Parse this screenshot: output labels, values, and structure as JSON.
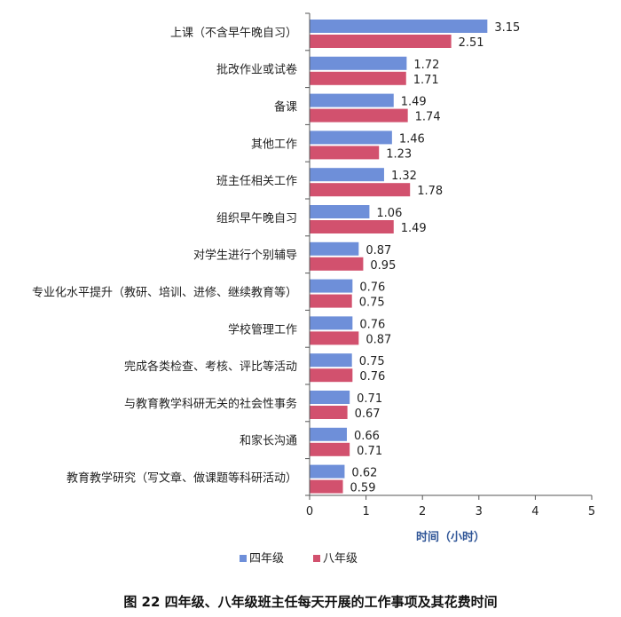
{
  "chart_data": {
    "type": "bar",
    "orientation": "horizontal",
    "categories": [
      "上课（不含早午晚自习）",
      "批改作业或试卷",
      "备课",
      "其他工作",
      "班主任相关工作",
      "组织早午晚自习",
      "对学生进行个别辅导",
      "专业化水平提升（教研、培训、进修、继续教育等）",
      "学校管理工作",
      "完成各类检查、考核、评比等活动",
      "与教育教学科研无关的社会性事务",
      "和家长沟通",
      "教育教学研究（写文章、做课题等科研活动）"
    ],
    "series": [
      {
        "name": "四年级",
        "color": "#6E8FD9",
        "values": [
          3.15,
          1.72,
          1.49,
          1.46,
          1.32,
          1.06,
          0.87,
          0.76,
          0.76,
          0.75,
          0.71,
          0.66,
          0.62
        ],
        "labels": [
          "3.15",
          "1.72",
          "1.49",
          "1.46",
          "1.32",
          "1.06",
          "0.87",
          "0.76",
          "0.76",
          "0.75",
          "0.71",
          "0.66",
          "0.62"
        ]
      },
      {
        "name": "八年级",
        "color": "#D2516E",
        "values": [
          2.51,
          1.71,
          1.74,
          1.23,
          1.78,
          1.49,
          0.95,
          0.75,
          0.87,
          0.76,
          0.67,
          0.71,
          0.59
        ],
        "labels": [
          "2.51",
          "1.71",
          "1.74",
          "1.23",
          "1.78",
          "1.49",
          "0.95",
          "0.75",
          "0.87",
          "0.76",
          "0.67",
          "0.71",
          "0.59"
        ]
      }
    ],
    "xlabel": "时间（小时）",
    "xlim": [
      0,
      5
    ],
    "xticks": [
      "0",
      "1",
      "2",
      "3",
      "4",
      "5"
    ],
    "grid": false,
    "legend": "bottom",
    "caption": "图 22  四年级、八年级班主任每天开展的工作事项及其花费时间"
  }
}
